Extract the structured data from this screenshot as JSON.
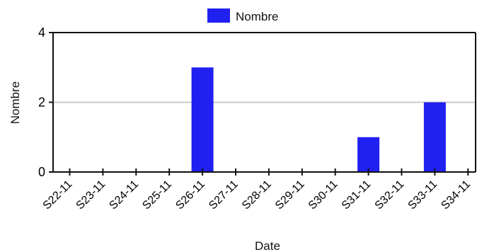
{
  "chart_data": {
    "type": "bar",
    "categories": [
      "S22-11",
      "S23-11",
      "S24-11",
      "S25-11",
      "S26-11",
      "S27-11",
      "S28-11",
      "S29-11",
      "S30-11",
      "S31-11",
      "S32-11",
      "S33-11",
      "S34-11"
    ],
    "series": [
      {
        "name": "Nombre",
        "color": "#2020f0",
        "values": [
          0,
          0,
          0,
          0,
          3,
          0,
          0,
          0,
          0,
          1,
          0,
          2,
          0
        ]
      }
    ],
    "xlabel": "Date",
    "ylabel": "Nombre",
    "ylim": [
      0,
      4
    ],
    "yticks": [
      0,
      2,
      4
    ],
    "grid": true,
    "legend_position": "top-center"
  }
}
